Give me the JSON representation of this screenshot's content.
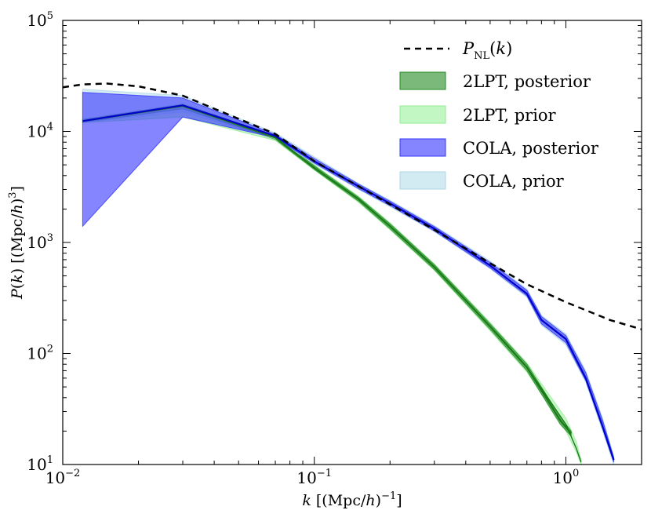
{
  "chart_data": {
    "type": "area",
    "title": "",
    "xlabel": "k [(Mpc/h)^-1]",
    "ylabel": "P(k) [(Mpc/h)^3]",
    "xscale": "log",
    "yscale": "log",
    "xlim": [
      0.01,
      2.0
    ],
    "ylim": [
      10,
      100000
    ],
    "grid": false,
    "legend_position": "top-right",
    "x_ticks": [
      {
        "value": 0.01,
        "base": "10",
        "exp": "−2"
      },
      {
        "value": 0.1,
        "base": "10",
        "exp": "−1"
      },
      {
        "value": 1,
        "base": "10",
        "exp": "0"
      }
    ],
    "y_ticks": [
      {
        "value": 10,
        "base": "10",
        "exp": "1"
      },
      {
        "value": 100,
        "base": "10",
        "exp": "2"
      },
      {
        "value": 1000,
        "base": "10",
        "exp": "3"
      },
      {
        "value": 10000,
        "base": "10",
        "exp": "4"
      },
      {
        "value": 100000,
        "base": "10",
        "exp": "5"
      }
    ],
    "series": [
      {
        "name": "P_NL(k)",
        "kind": "line",
        "color": "#000000",
        "dash": true,
        "x": [
          0.01,
          0.012,
          0.015,
          0.02,
          0.03,
          0.05,
          0.07,
          0.1,
          0.15,
          0.2,
          0.3,
          0.5,
          0.7,
          1.0,
          1.5,
          2.0
        ],
        "y": [
          25000,
          26500,
          27000,
          25500,
          21000,
          13000,
          9500,
          5400,
          3200,
          2200,
          1300,
          650,
          420,
          290,
          200,
          165
        ]
      },
      {
        "name": "2LPT, prior",
        "kind": "band",
        "color": "#90ee90",
        "x": [
          0.012,
          0.03,
          0.07,
          0.1,
          0.15,
          0.2,
          0.3,
          0.5,
          0.7,
          1.0,
          1.1,
          1.15
        ],
        "low": [
          12000,
          13500,
          8300,
          4500,
          2300,
          1300,
          560,
          160,
          68,
          20,
          13,
          10
        ],
        "high": [
          12800,
          17800,
          9300,
          5000,
          2600,
          1500,
          640,
          190,
          82,
          26,
          16,
          11
        ],
        "mid": [
          12400,
          17000,
          8800,
          4700,
          2450,
          1400,
          600,
          175,
          75,
          23,
          14,
          10.5
        ]
      },
      {
        "name": "2LPT, posterior",
        "kind": "band",
        "color": "#228b22",
        "x": [
          0.012,
          0.03,
          0.07,
          0.1,
          0.15,
          0.2,
          0.3,
          0.5,
          0.7,
          0.95,
          1.05
        ],
        "low": [
          12000,
          16000,
          8500,
          4550,
          2350,
          1330,
          570,
          165,
          70,
          23,
          18
        ],
        "high": [
          12800,
          17500,
          9100,
          4900,
          2550,
          1470,
          630,
          185,
          80,
          27,
          20
        ],
        "mid": [
          12400,
          17000,
          8800,
          4700,
          2450,
          1400,
          600,
          175,
          75,
          25,
          19
        ]
      },
      {
        "name": "COLA, prior",
        "kind": "band",
        "color": "#add8e6",
        "x": [
          0.012,
          0.03,
          0.07,
          0.1,
          0.15,
          0.2,
          0.3,
          0.5,
          0.7,
          0.8,
          1.0,
          1.2,
          1.4,
          1.55
        ],
        "low": [
          12000,
          15000,
          8600,
          5100,
          3000,
          2100,
          1250,
          580,
          320,
          180,
          120,
          55,
          20,
          10
        ],
        "high": [
          24000,
          21000,
          9700,
          5900,
          3400,
          2400,
          1420,
          680,
          380,
          220,
          150,
          70,
          26,
          12
        ],
        "mid": [
          12400,
          17200,
          9100,
          5400,
          3200,
          2250,
          1330,
          620,
          345,
          200,
          135,
          60,
          22,
          11
        ]
      },
      {
        "name": "COLA, posterior",
        "kind": "band",
        "color": "#3333ff",
        "x": [
          0.012,
          0.03,
          0.07,
          0.1,
          0.15,
          0.2,
          0.3,
          0.5,
          0.7,
          0.8,
          1.0,
          1.2,
          1.4,
          1.55
        ],
        "low": [
          1400,
          13500,
          8800,
          5200,
          3050,
          2150,
          1270,
          590,
          330,
          185,
          125,
          57,
          21,
          10.5
        ],
        "high": [
          22500,
          20000,
          9400,
          5700,
          3350,
          2350,
          1390,
          660,
          370,
          215,
          145,
          67,
          25,
          11.5
        ],
        "mid": [
          12400,
          17200,
          9100,
          5400,
          3200,
          2250,
          1330,
          620,
          345,
          200,
          135,
          60,
          22,
          11
        ]
      }
    ],
    "legend": [
      {
        "key": "pnl",
        "label": "P_NL(k)"
      },
      {
        "key": "lpt_post",
        "label": "2LPT, posterior"
      },
      {
        "key": "lpt_prior",
        "label": "2LPT, prior"
      },
      {
        "key": "cola_post",
        "label": "COLA, posterior"
      },
      {
        "key": "cola_prior",
        "label": "COLA, prior"
      }
    ]
  }
}
